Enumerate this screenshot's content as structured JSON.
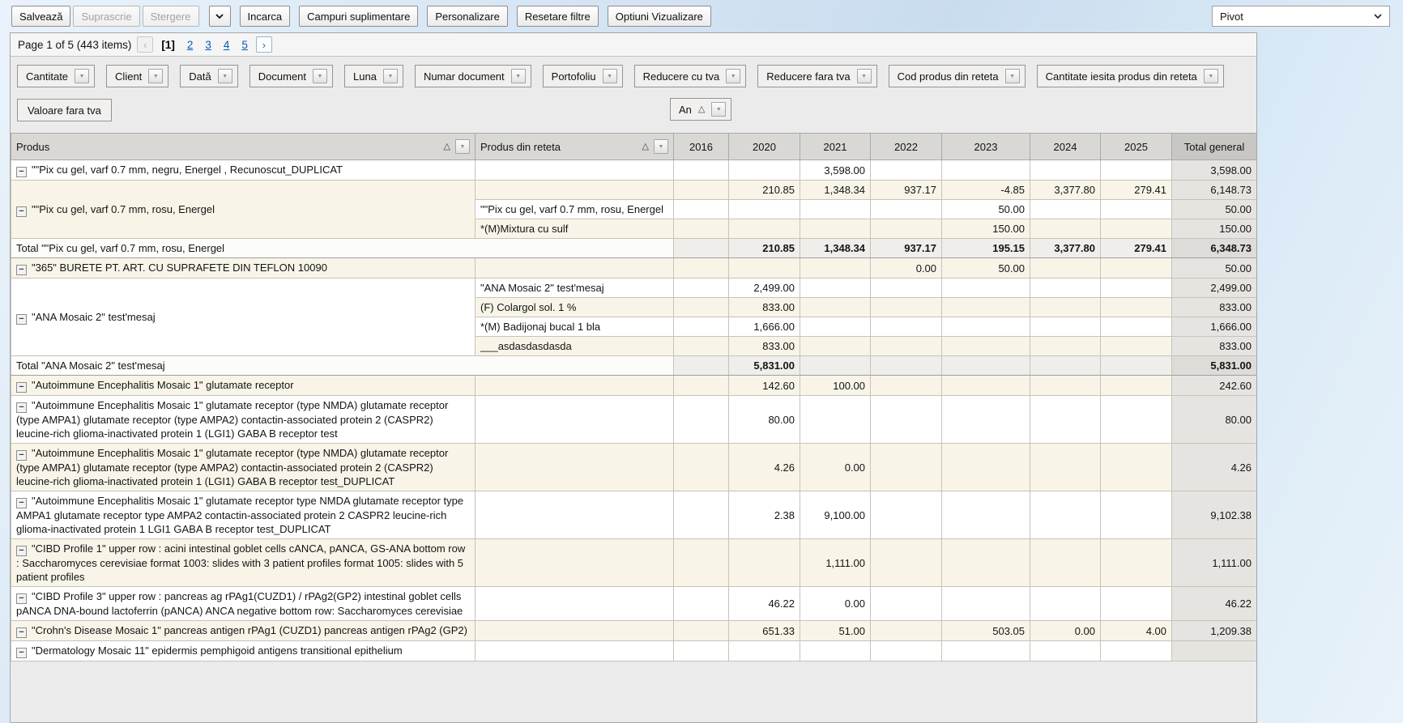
{
  "toolbar": {
    "buttons": [
      {
        "name": "salveaza",
        "label": "Salvează",
        "enabled": true
      },
      {
        "name": "suprascrie",
        "label": "Suprascrie",
        "enabled": false
      },
      {
        "name": "stergere",
        "label": "Stergere",
        "enabled": false
      },
      {
        "name": "layout-dropdown",
        "type": "caret",
        "enabled": true
      },
      {
        "name": "incarca",
        "label": "Incarca",
        "enabled": true
      },
      {
        "name": "campuri-suplimentare",
        "label": "Campuri suplimentare",
        "enabled": true
      },
      {
        "name": "personalizare",
        "label": "Personalizare",
        "enabled": true
      },
      {
        "name": "resetare-filtre",
        "label": "Resetare filtre",
        "enabled": true
      },
      {
        "name": "optiuni-vizualizare",
        "label": "Optiuni Vizualizare",
        "enabled": true
      }
    ],
    "view_select_value": "Pivot"
  },
  "pager": {
    "status": "Page 1 of 5 (443 items)",
    "pages": [
      "1",
      "2",
      "3",
      "4",
      "5"
    ],
    "current": "1",
    "prev": "‹",
    "next": "›"
  },
  "filter_fields": [
    "Cantitate",
    "Client",
    "Dată",
    "Document",
    "Luna",
    "Numar document",
    "Portofoliu",
    "Reducere cu tva",
    "Reducere fara tva",
    "Cod produs din reteta",
    "Cantitate iesita produs din reteta"
  ],
  "data_field_label": "Valoare fara tva",
  "column_field": {
    "label": "An",
    "sort": "asc"
  },
  "table": {
    "produs_header": "Produs",
    "reteta_header": "Produs din reteta",
    "year_columns": [
      "2016",
      "2020",
      "2021",
      "2022",
      "2023",
      "2024",
      "2025"
    ],
    "total_header": "Total general",
    "rows": [
      {
        "type": "data",
        "shade": "white",
        "produs": {
          "text": "\"\"Pix cu gel, varf 0.7 mm, negru, Energel , Recunoscut_DUPLICAT",
          "rowspan": 1
        },
        "reteta": "",
        "values": [
          "",
          "",
          "3,598.00",
          "",
          "",
          "",
          "",
          "3,598.00"
        ]
      },
      {
        "type": "data",
        "shade": "cream",
        "produs": {
          "text": "\"\"Pix cu gel, varf 0.7 mm, rosu, Energel",
          "rowspan": 3
        },
        "reteta": "",
        "values": [
          "",
          "210.85",
          "1,348.34",
          "937.17",
          "-4.85",
          "3,377.80",
          "279.41",
          "6,148.73"
        ]
      },
      {
        "type": "data",
        "shade": "white",
        "reteta": "\"\"Pix cu gel, varf 0.7 mm, rosu, Energel",
        "values": [
          "",
          "",
          "",
          "",
          "50.00",
          "",
          "",
          "50.00"
        ]
      },
      {
        "type": "data",
        "shade": "cream",
        "reteta": "*(M)Mixtura cu sulf",
        "values": [
          "",
          "",
          "",
          "",
          "150.00",
          "",
          "",
          "150.00"
        ]
      },
      {
        "type": "total",
        "label": "Total \"\"Pix cu gel, varf 0.7 mm, rosu, Energel",
        "values": [
          "",
          "210.85",
          "1,348.34",
          "937.17",
          "195.15",
          "3,377.80",
          "279.41",
          "6,348.73"
        ]
      },
      {
        "type": "data",
        "shade": "cream",
        "produs": {
          "text": "\"365\" BURETE PT. ART. CU SUPRAFETE DIN TEFLON 10090",
          "rowspan": 1
        },
        "reteta": "",
        "values": [
          "",
          "",
          "",
          "0.00",
          "50.00",
          "",
          "",
          "50.00"
        ]
      },
      {
        "type": "data",
        "shade": "white",
        "produs": {
          "text": "\"ANA Mosaic 2\" test'mesaj",
          "rowspan": 4
        },
        "reteta": "\"ANA Mosaic 2\" test'mesaj",
        "values": [
          "",
          "2,499.00",
          "",
          "",
          "",
          "",
          "",
          "2,499.00"
        ]
      },
      {
        "type": "data",
        "shade": "cream",
        "reteta": "(F) Colargol sol. 1 %",
        "values": [
          "",
          "833.00",
          "",
          "",
          "",
          "",
          "",
          "833.00"
        ]
      },
      {
        "type": "data",
        "shade": "white",
        "reteta": "*(M) Badijonaj bucal 1 bla",
        "values": [
          "",
          "1,666.00",
          "",
          "",
          "",
          "",
          "",
          "1,666.00"
        ]
      },
      {
        "type": "data",
        "shade": "cream",
        "reteta": "___asdasdasdasda",
        "values": [
          "",
          "833.00",
          "",
          "",
          "",
          "",
          "",
          "833.00"
        ]
      },
      {
        "type": "total",
        "label": "Total \"ANA Mosaic 2\" test'mesaj",
        "values": [
          "",
          "5,831.00",
          "",
          "",
          "",
          "",
          "",
          "5,831.00"
        ]
      },
      {
        "type": "data",
        "shade": "cream",
        "produs": {
          "text": "\"Autoimmune Encephalitis Mosaic 1\" glutamate receptor",
          "rowspan": 1
        },
        "reteta": "",
        "values": [
          "",
          "142.60",
          "100.00",
          "",
          "",
          "",
          "",
          "242.60"
        ]
      },
      {
        "type": "data",
        "shade": "white",
        "produs": {
          "text": "\"Autoimmune Encephalitis Mosaic 1\" glutamate receptor (type NMDA) glutamate receptor (type AMPA1) glutamate receptor (type AMPA2) contactin-associated protein 2 (CASPR2) leucine-rich glioma-inactivated protein 1 (LGI1) GABA B receptor test",
          "rowspan": 1
        },
        "reteta": "",
        "values": [
          "",
          "80.00",
          "",
          "",
          "",
          "",
          "",
          "80.00"
        ]
      },
      {
        "type": "data",
        "shade": "cream",
        "produs": {
          "text": "\"Autoimmune Encephalitis Mosaic 1\" glutamate receptor (type NMDA) glutamate receptor (type AMPA1) glutamate receptor (type AMPA2) contactin-associated protein 2 (CASPR2) leucine-rich glioma-inactivated protein 1 (LGI1) GABA B receptor test_DUPLICAT",
          "rowspan": 1
        },
        "reteta": "",
        "values": [
          "",
          "4.26",
          "0.00",
          "",
          "",
          "",
          "",
          "4.26"
        ]
      },
      {
        "type": "data",
        "shade": "white",
        "produs": {
          "text": "\"Autoimmune Encephalitis Mosaic 1\" glutamate receptor type NMDA glutamate receptor type AMPA1 glutamate receptor type AMPA2 contactin-associated protein 2 CASPR2 leucine-rich glioma-inactivated protein 1 LGI1 GABA B receptor test_DUPLICAT",
          "rowspan": 1
        },
        "reteta": "",
        "values": [
          "",
          "2.38",
          "9,100.00",
          "",
          "",
          "",
          "",
          "9,102.38"
        ]
      },
      {
        "type": "data",
        "shade": "cream",
        "produs": {
          "text": "\"CIBD Profile 1\" upper row : acini intestinal goblet cells cANCA, pANCA, GS-ANA bottom row : Saccharomyces cerevisiae format 1003: slides with 3 patient profiles format 1005: slides with 5 patient profiles",
          "rowspan": 1
        },
        "reteta": "",
        "values": [
          "",
          "",
          "1,111.00",
          "",
          "",
          "",
          "",
          "1,111.00"
        ]
      },
      {
        "type": "data",
        "shade": "white",
        "produs": {
          "text": "\"CIBD Profile 3\" upper row : pancreas ag rPAg1(CUZD1) / rPAg2(GP2) intestinal goblet cells pANCA DNA-bound lactoferrin (pANCA) ANCA negative bottom row: Saccharomyces cerevisiae",
          "rowspan": 1
        },
        "reteta": "",
        "values": [
          "",
          "46.22",
          "0.00",
          "",
          "",
          "",
          "",
          "46.22"
        ]
      },
      {
        "type": "data",
        "shade": "cream",
        "produs": {
          "text": "\"Crohn's Disease Mosaic 1\" pancreas antigen rPAg1 (CUZD1) pancreas antigen rPAg2 (GP2)",
          "rowspan": 1
        },
        "reteta": "",
        "values": [
          "",
          "651.33",
          "51.00",
          "",
          "503.05",
          "0.00",
          "4.00",
          "1,209.38"
        ]
      },
      {
        "type": "data",
        "shade": "white",
        "produs": {
          "text": "\"Dermatology Mosaic 11\" epidermis pemphigoid antigens transitional epithelium",
          "rowspan": 1
        },
        "reteta": "",
        "values": [
          "",
          "",
          "",
          "",
          "",
          "",
          "",
          ""
        ]
      }
    ]
  }
}
